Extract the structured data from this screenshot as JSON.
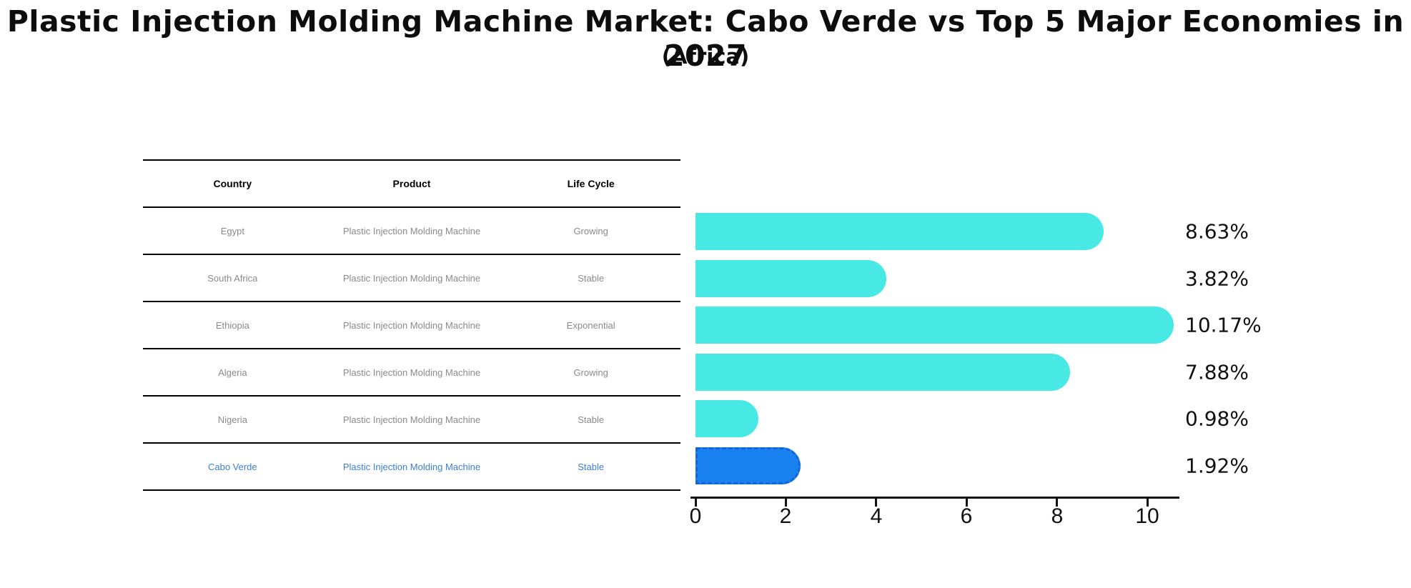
{
  "title": "Plastic Injection Molding Machine Market: Cabo Verde vs Top 5 Major Economies in 2027",
  "subtitle": "(Africa)",
  "table": {
    "headers": [
      "Country",
      "Product",
      "Life Cycle"
    ],
    "rows": [
      {
        "country": "Egypt",
        "product": "Plastic Injection Molding Machine",
        "life_cycle": "Growing",
        "highlight": false
      },
      {
        "country": "South Africa",
        "product": "Plastic Injection Molding Machine",
        "life_cycle": "Stable",
        "highlight": false
      },
      {
        "country": "Ethiopia",
        "product": "Plastic Injection Molding Machine",
        "life_cycle": "Exponential",
        "highlight": false
      },
      {
        "country": "Algeria",
        "product": "Plastic Injection Molding Machine",
        "life_cycle": "Growing",
        "highlight": false
      },
      {
        "country": "Nigeria",
        "product": "Plastic Injection Molding Machine",
        "life_cycle": "Stable",
        "highlight": false
      },
      {
        "country": "Cabo Verde",
        "product": "Plastic Injection Molding Machine",
        "life_cycle": "Stable",
        "highlight": true
      }
    ]
  },
  "chart_data": {
    "type": "bar",
    "orientation": "horizontal",
    "categories": [
      "Egypt",
      "South Africa",
      "Ethiopia",
      "Algeria",
      "Nigeria",
      "Cabo Verde"
    ],
    "values": [
      8.63,
      3.82,
      10.17,
      7.88,
      0.98,
      1.92
    ],
    "value_labels": [
      "8.63%",
      "3.82%",
      "10.17%",
      "7.88%",
      "0.98%",
      "1.92%"
    ],
    "highlighted_category": "Cabo Verde",
    "x_ticks": [
      0,
      2,
      4,
      6,
      8,
      10
    ],
    "xlim": [
      0,
      10.7
    ],
    "grid": false,
    "legend": false,
    "bar_color": "#48e8e4",
    "highlight_bar_color": "#1a82f0",
    "highlight_border_color": "#1266d6",
    "highlight_text_color": "#3a7fd4"
  }
}
